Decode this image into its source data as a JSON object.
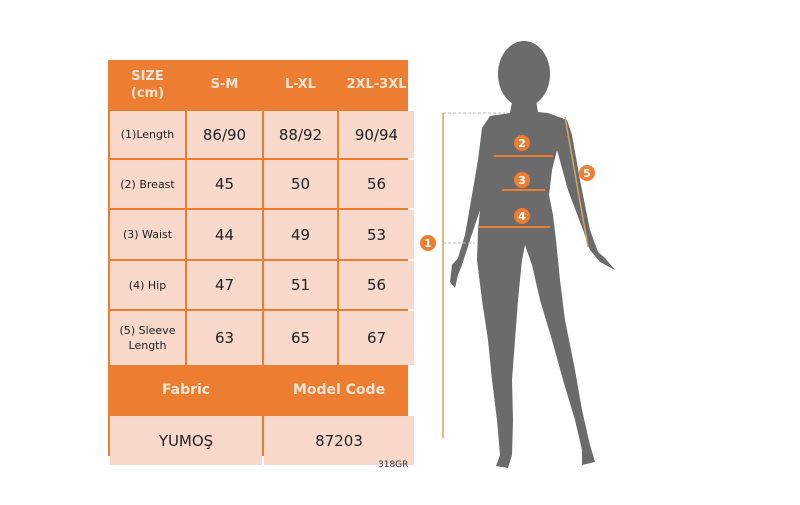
{
  "size_table": {
    "header": [
      "SIZE\n(cm)",
      "S-M",
      "L-XL",
      "2XL-3XL"
    ],
    "rows": [
      {
        "label": "(1)Length",
        "values": [
          "86/90",
          "88/92",
          "90/94"
        ]
      },
      {
        "label": "(2) Breast",
        "values": [
          "45",
          "50",
          "56"
        ]
      },
      {
        "label": "(3) Waist",
        "values": [
          "44",
          "49",
          "53"
        ]
      },
      {
        "label": "(4) Hip",
        "values": [
          "47",
          "51",
          "56"
        ]
      },
      {
        "label": "(5) Sleeve Length",
        "values": [
          "63",
          "65",
          "67"
        ]
      }
    ],
    "footer_headers": [
      "Fabric",
      "Model Code"
    ],
    "footer_values": [
      "YUMOŞ",
      "87203"
    ]
  },
  "image_code": "318GR",
  "figure": {
    "markers": [
      "1",
      "2",
      "3",
      "4",
      "5"
    ]
  },
  "colors": {
    "accent": "#ed7d31",
    "cell": "#f8d9cc",
    "silhouette": "#6b6b6b",
    "guide": "#d8a35a"
  }
}
